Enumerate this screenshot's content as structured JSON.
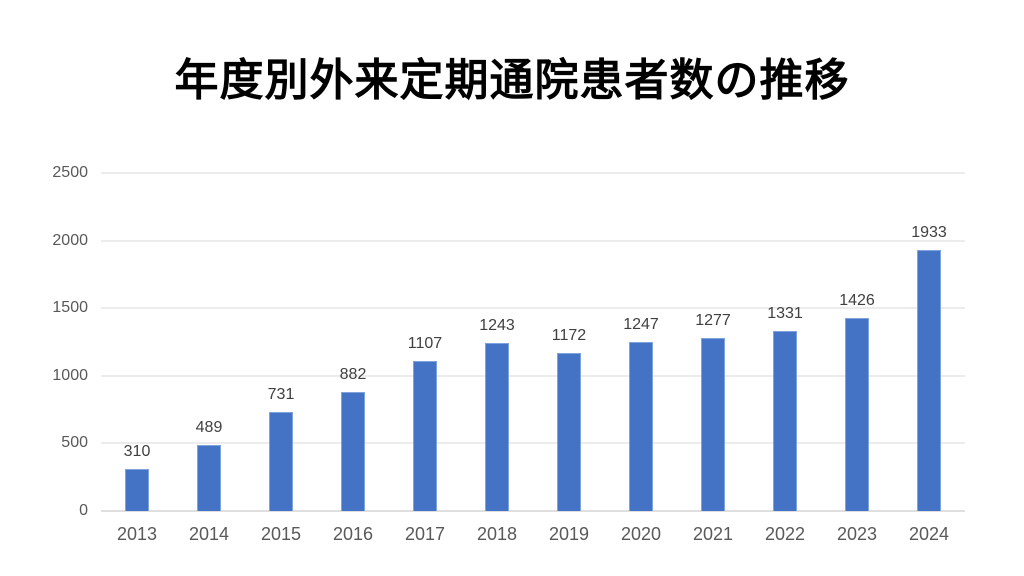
{
  "slide": {
    "title": "年度別外来定期通院患者数の推移"
  },
  "chart_data": {
    "type": "bar",
    "title": "年度別外来定期通院患者数の推移",
    "categories": [
      "2013",
      "2014",
      "2015",
      "2016",
      "2017",
      "2018",
      "2019",
      "2020",
      "2021",
      "2022",
      "2023",
      "2024"
    ],
    "values": [
      310,
      489,
      731,
      882,
      1107,
      1243,
      1172,
      1247,
      1277,
      1331,
      1426,
      1933
    ],
    "xlabel": "",
    "ylabel": "",
    "ylim": [
      0,
      2500
    ],
    "yticks": [
      0,
      500,
      1000,
      1500,
      2000,
      2500
    ],
    "grid": true,
    "legend_position": "none",
    "data_labels_shown": true,
    "colors": {
      "bar_fill": "#4472c4",
      "bar_border": "#7fa3dc",
      "gridline": "#d9d9d9",
      "axis_line": "#bfbfbf",
      "tick_label": "#595959",
      "data_label": "#404040",
      "title": "#000000",
      "background": "#ffffff"
    }
  }
}
